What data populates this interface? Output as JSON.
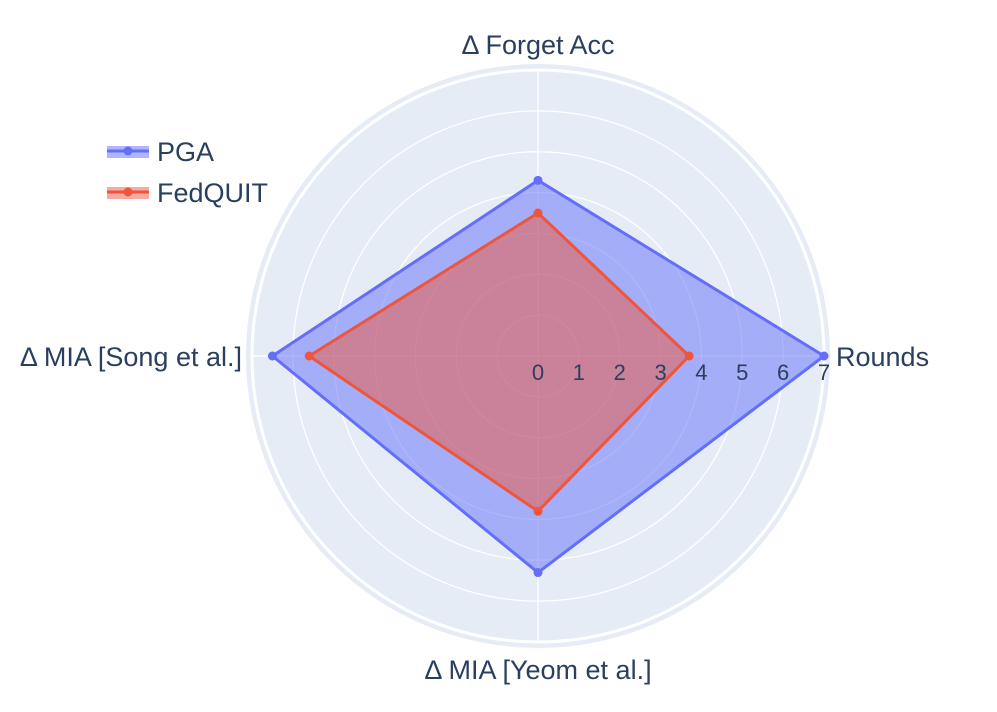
{
  "chart_data": {
    "type": "radar",
    "axes": [
      "Rounds",
      "Δ Forget Acc",
      "Δ MIA [Song et al.]",
      "Δ MIA [Yeom et al.]"
    ],
    "radial_ticks": [
      0,
      1,
      2,
      3,
      4,
      5,
      6,
      7
    ],
    "radial_range": [
      0,
      7
    ],
    "grid": true,
    "legend_position": "top-left",
    "series": [
      {
        "name": "PGA",
        "values": [
          7.0,
          4.3,
          6.5,
          5.3
        ],
        "color": "#636efa"
      },
      {
        "name": "FedQUIT",
        "values": [
          3.7,
          3.5,
          5.6,
          3.8
        ],
        "color": "#ef553b"
      }
    ],
    "plot_bgcolor": "#e5ecf6"
  }
}
